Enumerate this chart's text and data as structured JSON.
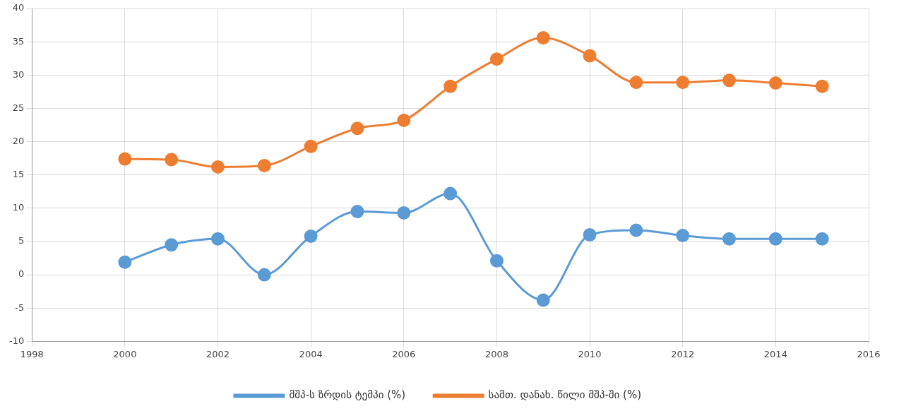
{
  "chart_data": {
    "type": "line",
    "x": [
      2000,
      2001,
      2002,
      2003,
      2004,
      2005,
      2006,
      2007,
      2008,
      2009,
      2010,
      2011,
      2012,
      2013,
      2014,
      2015
    ],
    "series": [
      {
        "name": "მშპ-ს ზრდის ტემპი (%)",
        "color": "#5b9bd5",
        "values": [
          1.9,
          4.5,
          5.4,
          0,
          5.8,
          9.5,
          9.3,
          12.2,
          2.1,
          -3.8,
          6.0,
          6.7,
          5.9,
          5.4,
          5.4,
          5.4
        ]
      },
      {
        "name": "სამთ. დანახ. წილი მშპ-ში (%)",
        "color": "#ed7d31",
        "values": [
          17.4,
          17.3,
          16.2,
          16.4,
          19.3,
          22.0,
          23.2,
          28.3,
          32.4,
          35.6,
          32.9,
          28.9,
          28.9,
          29.2,
          28.8,
          28.3
        ]
      }
    ],
    "xlim": [
      1998,
      2016
    ],
    "xticks": [
      1998,
      2000,
      2002,
      2004,
      2006,
      2008,
      2010,
      2012,
      2014,
      2016
    ],
    "ylim": [
      -10,
      40
    ],
    "yticks": [
      -10,
      -5,
      0,
      5,
      10,
      15,
      20,
      25,
      30,
      35,
      40
    ],
    "grid": true,
    "legend": "bottom",
    "marker": "circle"
  }
}
